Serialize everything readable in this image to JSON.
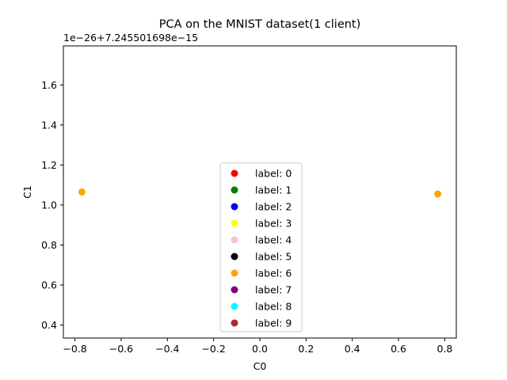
{
  "chart_data": {
    "type": "scatter",
    "title": "PCA on the MNIST dataset(1 client)",
    "xlabel": "C0",
    "ylabel": "C1",
    "y_offset_label": "1e−26+7.245501698e−15",
    "xlim": [
      -0.85,
      0.85
    ],
    "ylim": [
      0.335,
      1.795
    ],
    "xticks": [
      {
        "value": -0.8,
        "label": "−0.8"
      },
      {
        "value": -0.6,
        "label": "−0.6"
      },
      {
        "value": -0.4,
        "label": "−0.4"
      },
      {
        "value": -0.2,
        "label": "−0.2"
      },
      {
        "value": 0.0,
        "label": "0.0"
      },
      {
        "value": 0.2,
        "label": "0.2"
      },
      {
        "value": 0.4,
        "label": "0.4"
      },
      {
        "value": 0.6,
        "label": "0.6"
      },
      {
        "value": 0.8,
        "label": "0.8"
      }
    ],
    "yticks": [
      {
        "value": 0.4,
        "label": "0.4"
      },
      {
        "value": 0.6,
        "label": "0.6"
      },
      {
        "value": 0.8,
        "label": "0.8"
      },
      {
        "value": 1.0,
        "label": "1.0"
      },
      {
        "value": 1.2,
        "label": "1.2"
      },
      {
        "value": 1.4,
        "label": "1.4"
      },
      {
        "value": 1.6,
        "label": "1.6"
      }
    ],
    "grid": false,
    "legend_position": "lower-center",
    "series": [
      {
        "name": "label: 0",
        "color": "#ff0000",
        "points": []
      },
      {
        "name": "label: 1",
        "color": "#008000",
        "points": []
      },
      {
        "name": "label: 2",
        "color": "#0000ff",
        "points": []
      },
      {
        "name": "label: 3",
        "color": "#ffff00",
        "points": []
      },
      {
        "name": "label: 4",
        "color": "#ffc0cb",
        "points": []
      },
      {
        "name": "label: 5",
        "color": "#000000",
        "points": []
      },
      {
        "name": "label: 6",
        "color": "#ffa500",
        "points": [
          [
            -0.77,
            1.065
          ],
          [
            0.77,
            1.055
          ]
        ]
      },
      {
        "name": "label: 7",
        "color": "#800080",
        "points": []
      },
      {
        "name": "label: 8",
        "color": "#00ffff",
        "points": []
      },
      {
        "name": "label: 9",
        "color": "#a52a2a",
        "points": []
      }
    ]
  }
}
